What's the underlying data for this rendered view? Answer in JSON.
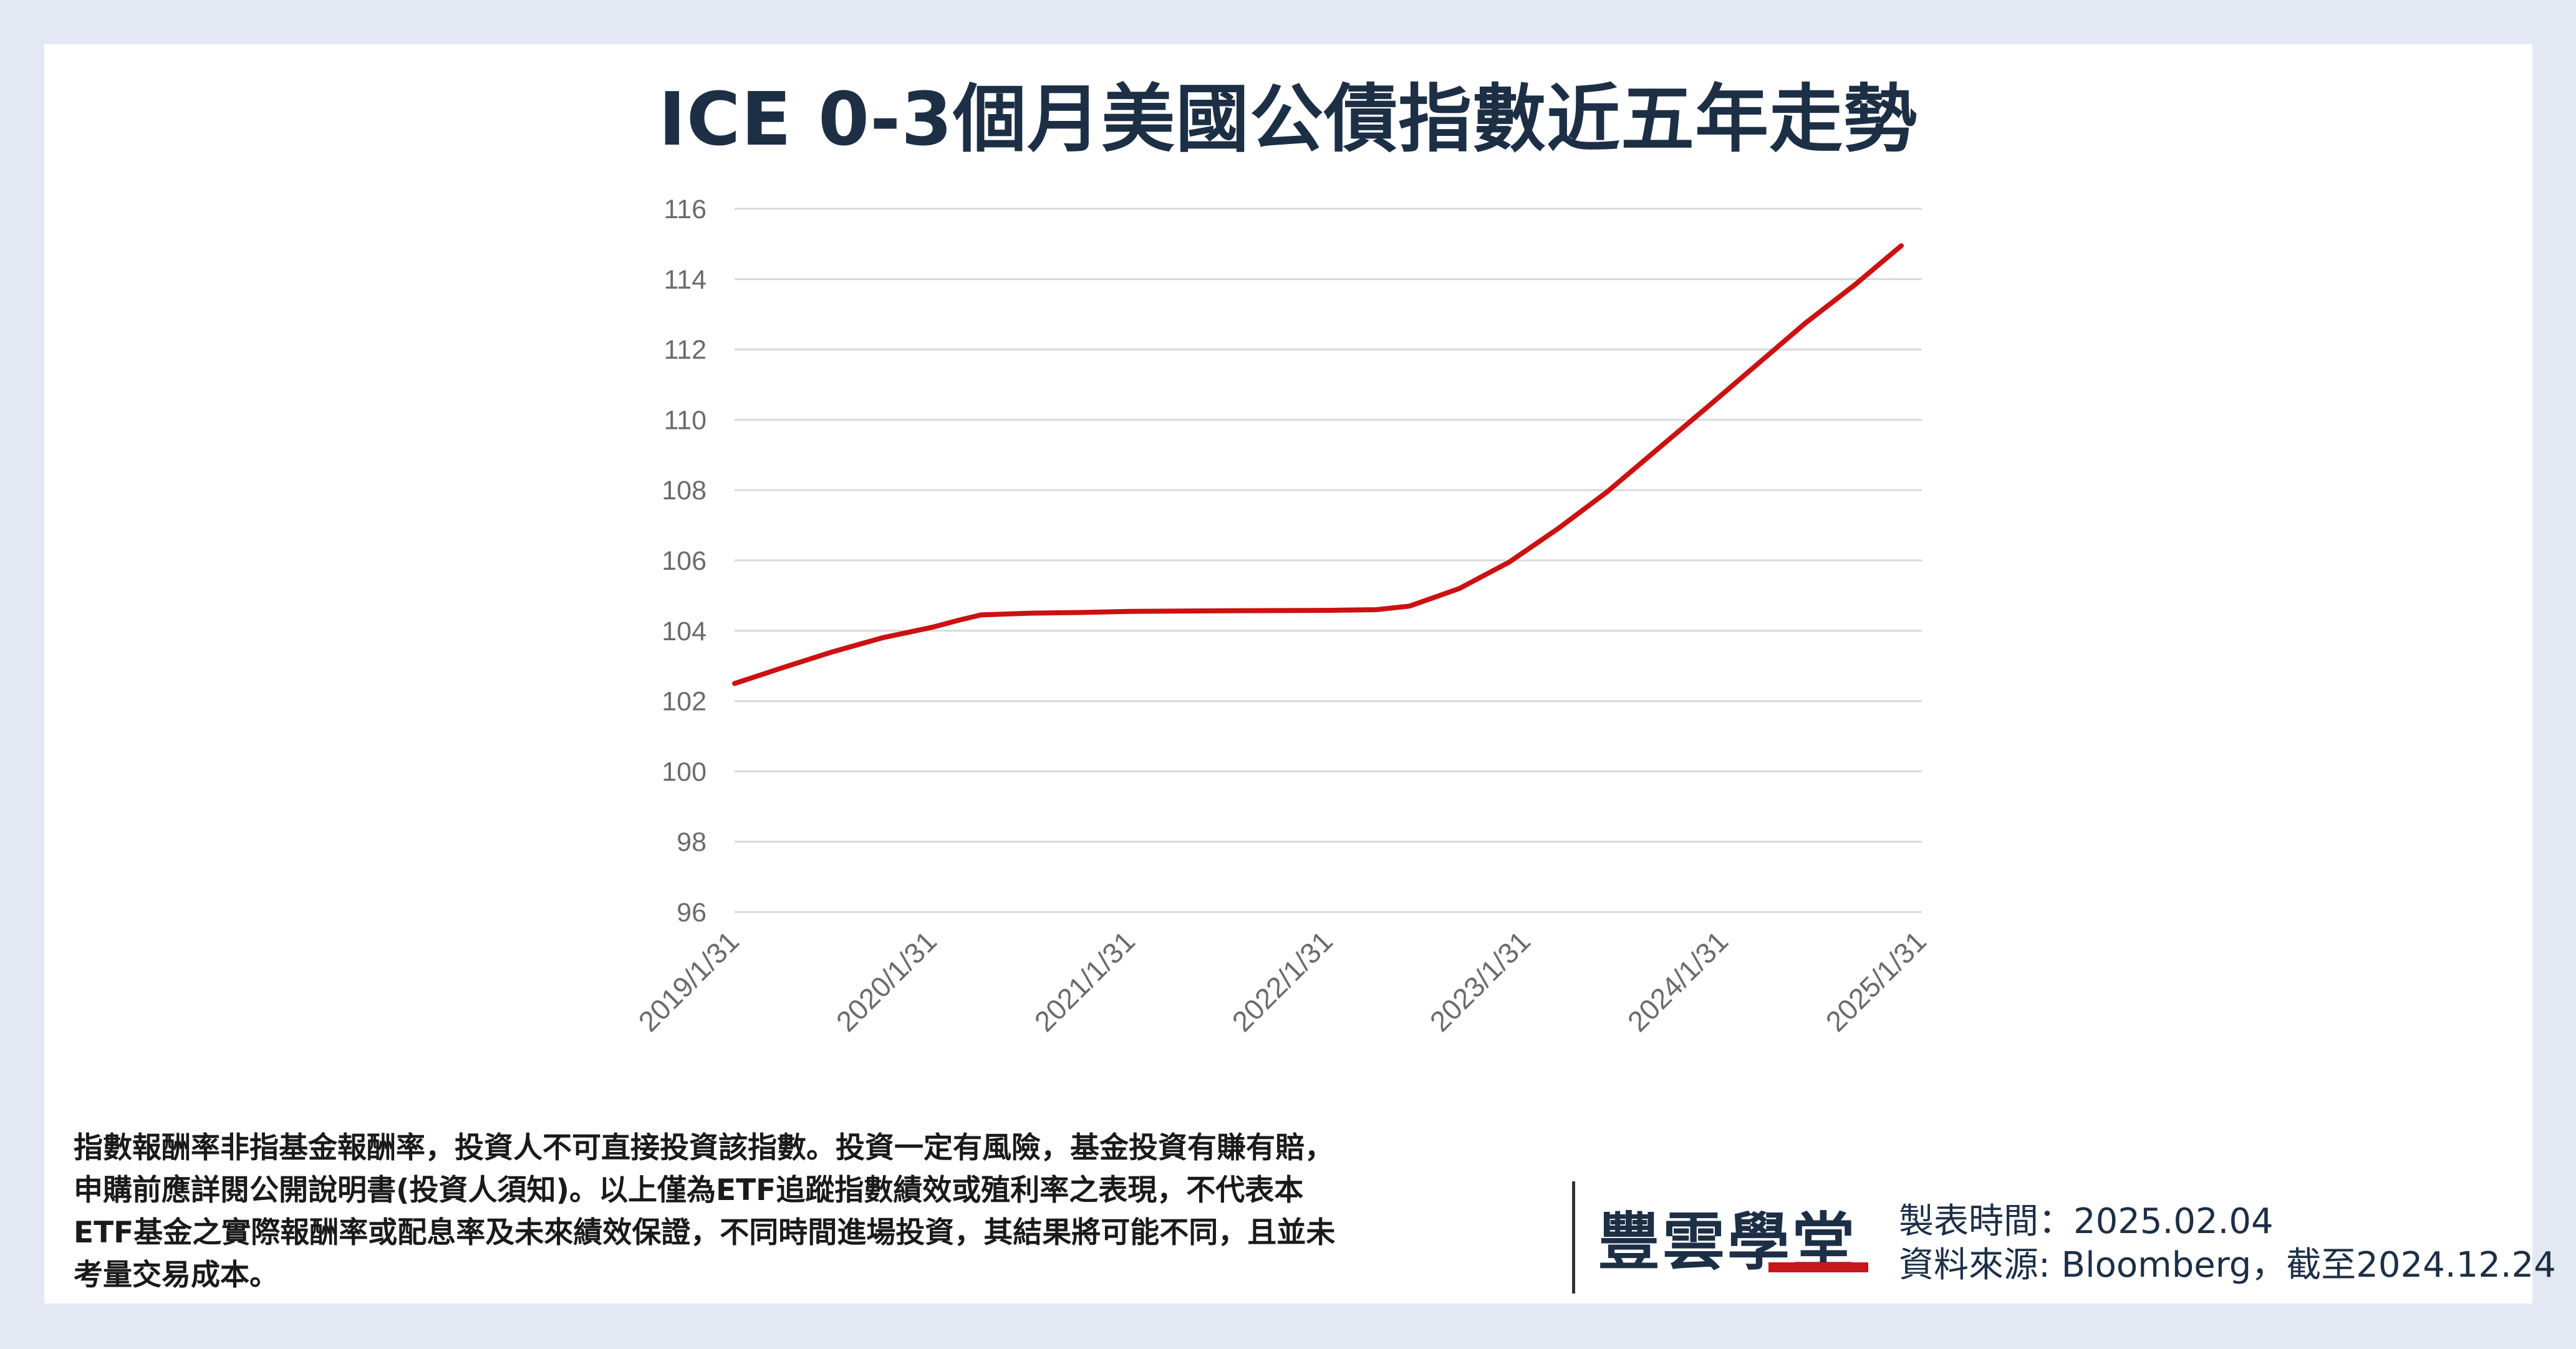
{
  "title": "ICE 0-3個月美國公債指數近五年走勢",
  "chart_data": {
    "type": "line",
    "title": "ICE 0-3個月美國公債指數近五年走勢",
    "xlabel": "",
    "ylabel": "",
    "ylim": [
      96,
      116
    ],
    "yticks": [
      "116",
      "114",
      "112",
      "110",
      "108",
      "106",
      "104",
      "102",
      "100",
      "98",
      "96"
    ],
    "xticks": [
      "2019/1/31",
      "2020/1/31",
      "2021/1/31",
      "2022/1/31",
      "2023/1/31",
      "2024/1/31",
      "2025/1/31"
    ],
    "grid": true,
    "line_color": "#cc1111",
    "series": [
      {
        "x": [
          "2019/1/31",
          "2019/4/30",
          "2019/7/31",
          "2019/10/31",
          "2020/1/31",
          "2020/3/20",
          "2020/4/30",
          "2020/7/31",
          "2020/10/31",
          "2021/1/31",
          "2021/7/31",
          "2022/1/31",
          "2022/4/30",
          "2022/6/30",
          "2022/9/30",
          "2022/12/31",
          "2023/3/31",
          "2023/6/30",
          "2023/9/30",
          "2023/12/31",
          "2024/3/31",
          "2024/6/30",
          "2024/9/30",
          "2024/12/24"
        ],
        "values": [
          102.5,
          102.95,
          103.4,
          103.8,
          104.1,
          104.3,
          104.45,
          104.5,
          104.52,
          104.55,
          104.57,
          104.58,
          104.6,
          104.7,
          105.2,
          105.95,
          106.9,
          107.95,
          109.15,
          110.35,
          111.55,
          112.75,
          113.85,
          114.95
        ]
      }
    ]
  },
  "disclaimer": [
    "指數報酬率非指基金報酬率，投資人不可直接投資該指數。投資一定有風險，基金投資有賺有賠，",
    "申購前應詳閱公開說明書(投資人須知)。以上僅為ETF追蹤指數績效或殖利率之表現，不代表本",
    "ETF基金之實際報酬率或配息率及未來績效保證，不同時間進場投資，其結果將可能不同，且並未",
    "考量交易成本。"
  ],
  "logo": {
    "text": "豐雲學堂",
    "accent_color": "#c8161d"
  },
  "meta": {
    "made": "製表時間：2025.02.04",
    "source": "資料來源: Bloomberg，截至2024.12.24"
  }
}
